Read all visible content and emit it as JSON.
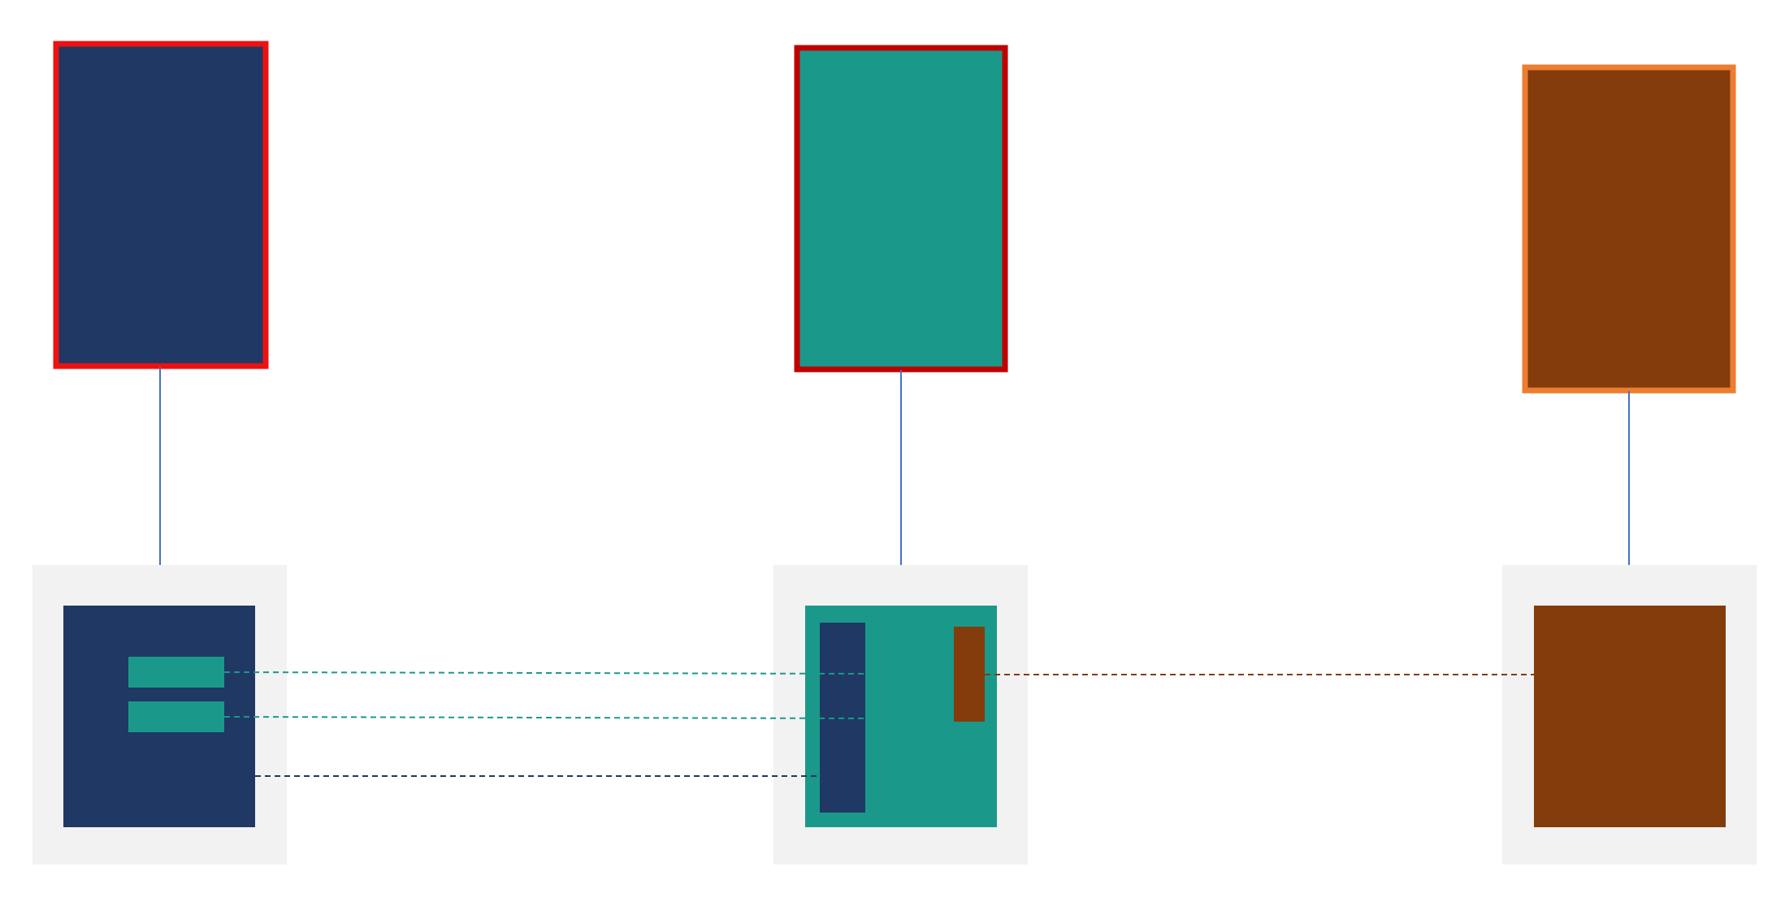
{
  "colors": {
    "navy": "#203864",
    "teal": "#1a998a",
    "brown": "#843c0c",
    "panel": "#f2f2f2",
    "red_border": "#ee1111",
    "darkred_border": "#c00000",
    "orange_border": "#ed7d31",
    "connector_blue": "#4472c4"
  }
}
